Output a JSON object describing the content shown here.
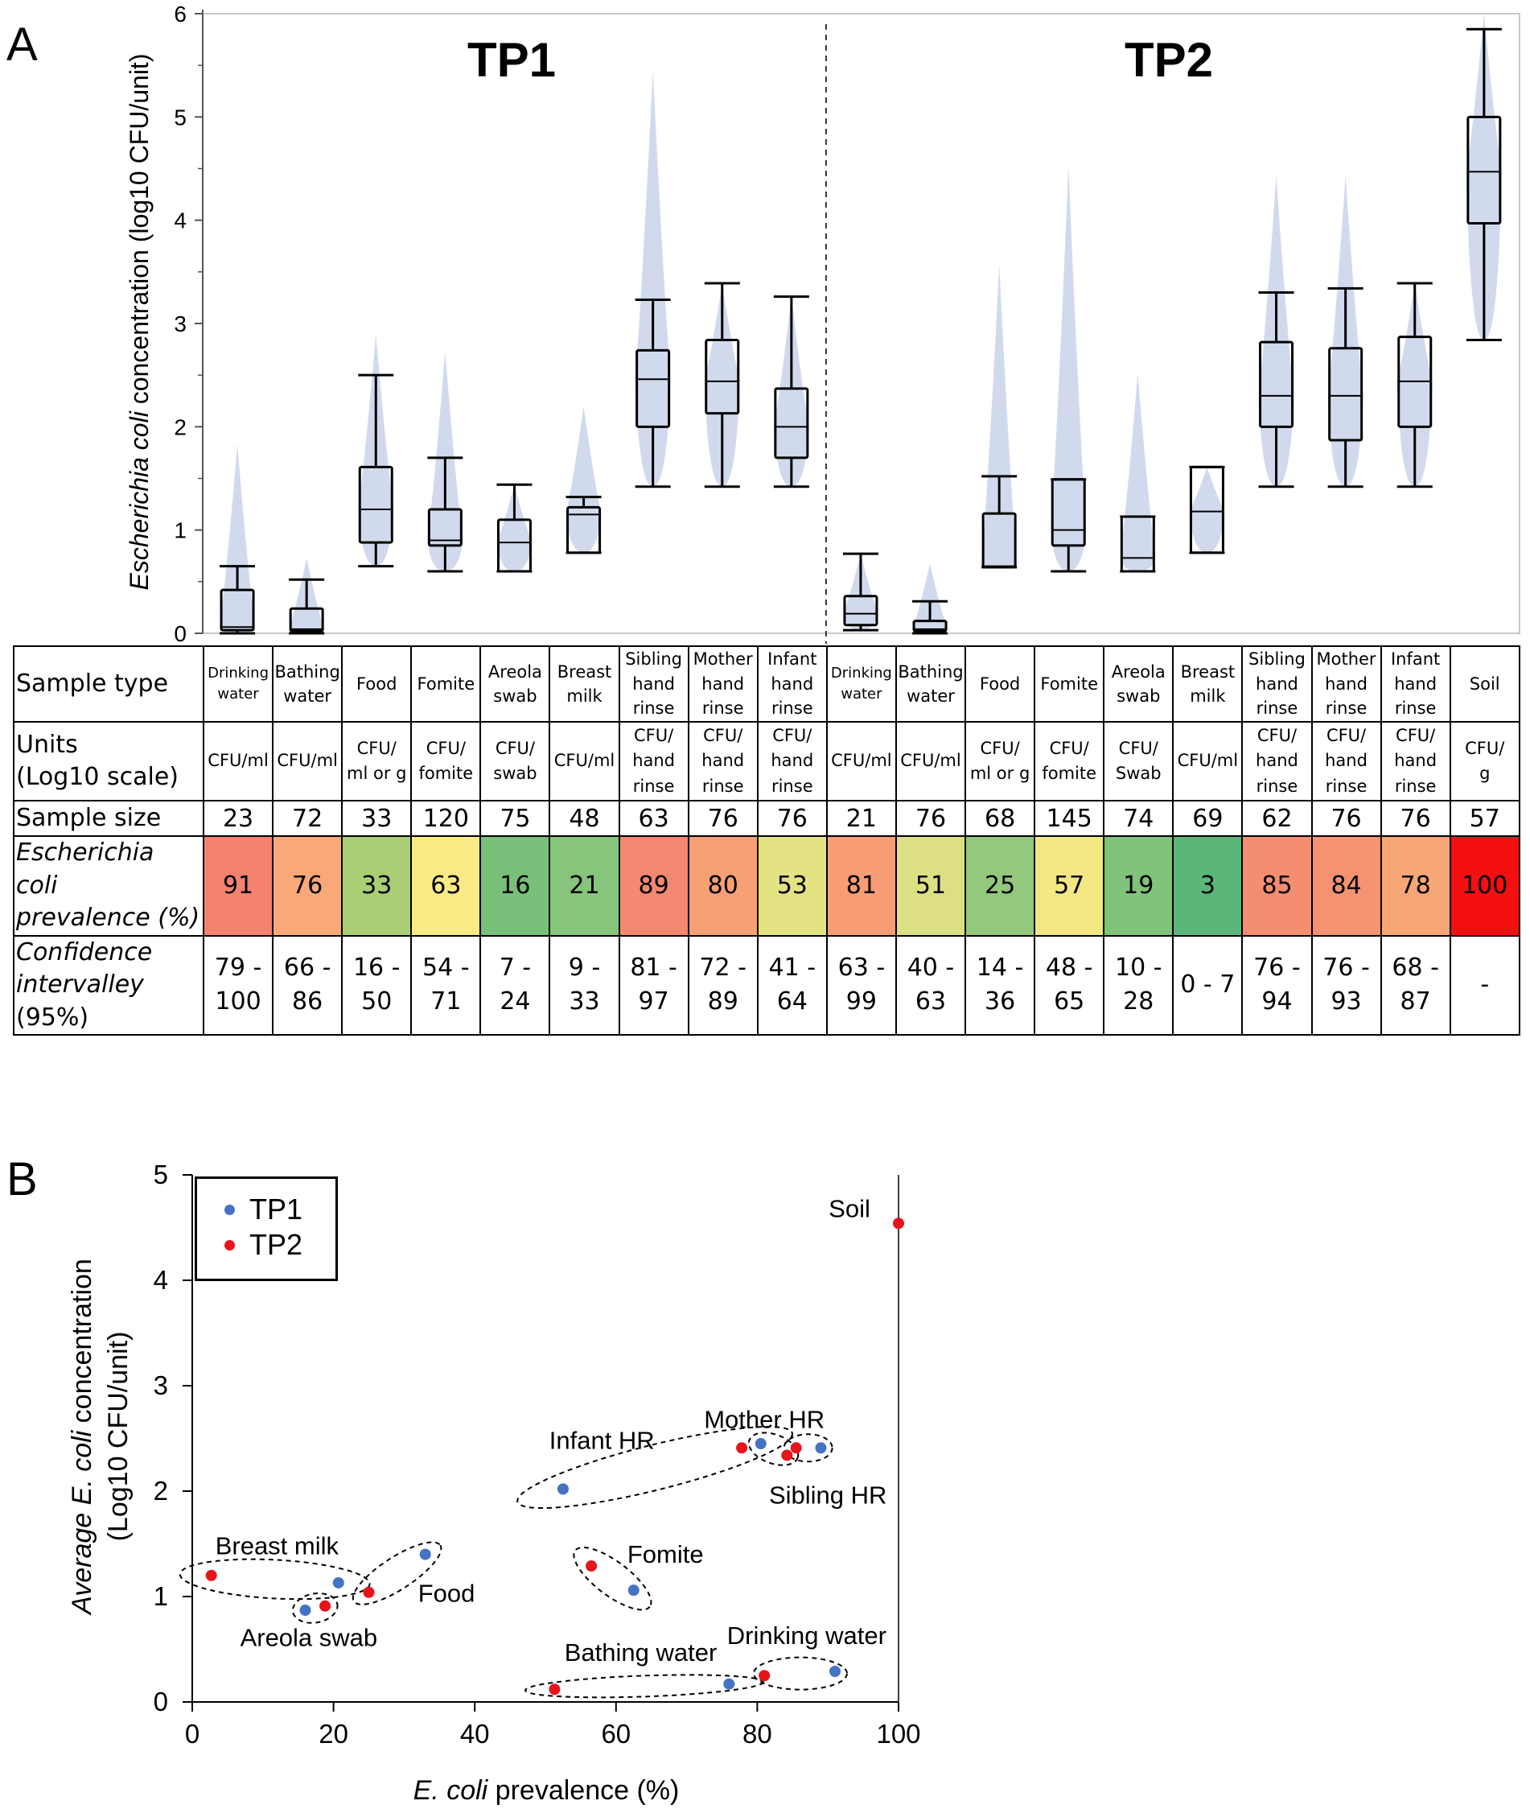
{
  "panel_a_label": "A",
  "panel_b_label": "B",
  "panel_a": {
    "group_titles": [
      "TP1",
      "TP2"
    ],
    "ylabel_italic": "Escherichia coli",
    "ylabel_rest": " concentration (log10 CFU/unit)",
    "yticks": [
      "0",
      "1",
      "2",
      "3",
      "4",
      "5",
      "6"
    ],
    "table": {
      "row_labels": {
        "sample_type": "Sample type",
        "units": "Units\n(Log10 scale)",
        "sample_size": "Sample size",
        "prevalence": "Escherichia coli\nprevalence (%)",
        "ci_italic": "Confidence\nintervalley",
        "ci_rest": " (95%)"
      },
      "columns": [
        {
          "type": "Drinking\nwater",
          "units": "CFU/ml",
          "n": "23",
          "prev": "91",
          "ci": "79 -\n100",
          "color": "#F4826E"
        },
        {
          "type": "Bathing\nwater",
          "units": "CFU/ml",
          "n": "72",
          "prev": "76",
          "ci": "66 -\n86",
          "color": "#F8A977"
        },
        {
          "type": "Food",
          "units": "CFU/\nml or g",
          "n": "33",
          "prev": "33",
          "ci": "16 -\n50",
          "color": "#A9CE73"
        },
        {
          "type": "Fomite",
          "units": "CFU/\nfomite",
          "n": "120",
          "prev": "63",
          "ci": "54 -\n71",
          "color": "#F9EA83"
        },
        {
          "type": "Areola\nswab",
          "units": "CFU/\nswab",
          "n": "75",
          "prev": "16",
          "ci": "7 - 24",
          "color": "#78C07A"
        },
        {
          "type": "Breast\nmilk",
          "units": "CFU/ml",
          "n": "48",
          "prev": "21",
          "ci": "9 - 33",
          "color": "#86C57B"
        },
        {
          "type": "Sibling\nhand\nrinse",
          "units": "CFU/\nhand\nrinse",
          "n": "63",
          "prev": "89",
          "ci": "81 -\n97",
          "color": "#F48870"
        },
        {
          "type": "Mother\nhand\nrinse",
          "units": "CFU/\nhand\nrinse",
          "n": "76",
          "prev": "80",
          "ci": "72 -\n89",
          "color": "#F7A075"
        },
        {
          "type": "Infant\nhand\nrinse",
          "units": "CFU/\nhand\nrinse",
          "n": "76",
          "prev": "53",
          "ci": "41 -\n64",
          "color": "#E4E383"
        },
        {
          "type": "Drinking\nwater",
          "units": "CFU/ml",
          "n": "21",
          "prev": "81",
          "ci": "63 -\n99",
          "color": "#F79C74"
        },
        {
          "type": "Bathing\nwater",
          "units": "CFU/ml",
          "n": "76",
          "prev": "51",
          "ci": "40 -\n63",
          "color": "#DCE082"
        },
        {
          "type": "Food",
          "units": "CFU/\nml or g",
          "n": "68",
          "prev": "25",
          "ci": "14 -\n36",
          "color": "#94C87C"
        },
        {
          "type": "Fomite",
          "units": "CFU/\nfomite",
          "n": "145",
          "prev": "57",
          "ci": "48 -\n65",
          "color": "#F2E783"
        },
        {
          "type": "Areola\nswab",
          "units": "CFU/\nSwab",
          "n": "74",
          "prev": "19",
          "ci": "10 -\n28",
          "color": "#80C37B"
        },
        {
          "type": "Breast\nmilk",
          "units": "CFU/ml",
          "n": "69",
          "prev": "3",
          "ci": "0 - 7",
          "color": "#5BB67A"
        },
        {
          "type": "Sibling\nhand\nrinse",
          "units": "CFU/\nhand\nrinse",
          "n": "62",
          "prev": "85",
          "ci": "76 -\n94",
          "color": "#F58E71"
        },
        {
          "type": "Mother\nhand\nrinse",
          "units": "CFU/\nhand\nrinse",
          "n": "76",
          "prev": "84",
          "ci": "76 -\n93",
          "color": "#F59272"
        },
        {
          "type": "Infant\nhand\nrinse",
          "units": "CFU/\nhand\nrinse",
          "n": "76",
          "prev": "78",
          "ci": "68 -\n87",
          "color": "#F7A676"
        },
        {
          "type": "Soil",
          "units": "CFU/\ng",
          "n": "57",
          "prev": "100",
          "ci": "-",
          "color": "#F40F10"
        }
      ]
    }
  },
  "chart_data": [
    {
      "type": "box",
      "title": "",
      "groups": [
        "TP1",
        "TP2"
      ],
      "ylabel": "Escherichia coli concentration (log10 CFU/unit)",
      "ylim": [
        0,
        6
      ],
      "violin_color": "#C9D3EA",
      "boxes": [
        {
          "group": "TP1",
          "category": "Drinking water",
          "min": 0.0,
          "q1": 0.03,
          "median": 0.06,
          "q3": 0.42,
          "max": 0.65,
          "violin_max": 1.83
        },
        {
          "group": "TP1",
          "category": "Bathing water",
          "min": 0.0,
          "q1": 0.02,
          "median": 0.04,
          "q3": 0.24,
          "max": 0.52,
          "violin_max": 0.73
        },
        {
          "group": "TP1",
          "category": "Food",
          "min": 0.65,
          "q1": 0.88,
          "median": 1.2,
          "q3": 1.61,
          "max": 2.5,
          "violin_max": 2.9
        },
        {
          "group": "TP1",
          "category": "Fomite",
          "min": 0.6,
          "q1": 0.85,
          "median": 0.9,
          "q3": 1.2,
          "max": 1.7,
          "violin_max": 2.73
        },
        {
          "group": "TP1",
          "category": "Areola swab",
          "min": 0.6,
          "q1": 0.6,
          "median": 0.88,
          "q3": 1.1,
          "max": 1.44,
          "violin_max": 1.44
        },
        {
          "group": "TP1",
          "category": "Breast milk",
          "min": 0.78,
          "q1": 0.78,
          "median": 1.15,
          "q3": 1.22,
          "max": 1.32,
          "violin_max": 2.2
        },
        {
          "group": "TP1",
          "category": "Sibling hand rinse",
          "min": 1.42,
          "q1": 2.0,
          "median": 2.46,
          "q3": 2.74,
          "max": 3.23,
          "violin_max": 5.45
        },
        {
          "group": "TP1",
          "category": "Mother hand rinse",
          "min": 1.42,
          "q1": 2.13,
          "median": 2.44,
          "q3": 2.84,
          "max": 3.39,
          "violin_max": 3.39
        },
        {
          "group": "TP1",
          "category": "Infant hand rinse",
          "min": 1.42,
          "q1": 1.7,
          "median": 2.0,
          "q3": 2.37,
          "max": 3.26,
          "violin_max": 3.26
        },
        {
          "group": "TP2",
          "category": "Drinking water",
          "min": 0.03,
          "q1": 0.08,
          "median": 0.19,
          "q3": 0.36,
          "max": 0.77,
          "violin_max": 0.77
        },
        {
          "group": "TP2",
          "category": "Bathing water",
          "min": 0.0,
          "q1": 0.02,
          "median": 0.04,
          "q3": 0.12,
          "max": 0.31,
          "violin_max": 0.67
        },
        {
          "group": "TP2",
          "category": "Food",
          "min": 0.64,
          "q1": 0.64,
          "median": 0.65,
          "q3": 1.16,
          "max": 1.52,
          "violin_max": 3.57
        },
        {
          "group": "TP2",
          "category": "Fomite",
          "min": 0.6,
          "q1": 0.85,
          "median": 1.0,
          "q3": 1.49,
          "max": 1.49,
          "violin_max": 4.53
        },
        {
          "group": "TP2",
          "category": "Areola swab",
          "min": 0.6,
          "q1": 0.6,
          "median": 0.73,
          "q3": 1.13,
          "max": 1.13,
          "violin_max": 2.52
        },
        {
          "group": "TP2",
          "category": "Breast milk",
          "min": 0.78,
          "q1": 0.78,
          "median": 1.18,
          "q3": 1.61,
          "max": 1.61,
          "violin_max": 1.61
        },
        {
          "group": "TP2",
          "category": "Sibling hand rinse",
          "min": 1.42,
          "q1": 2.0,
          "median": 2.3,
          "q3": 2.82,
          "max": 3.3,
          "violin_max": 4.43
        },
        {
          "group": "TP2",
          "category": "Mother hand rinse",
          "min": 1.42,
          "q1": 1.87,
          "median": 2.3,
          "q3": 2.76,
          "max": 3.34,
          "violin_max": 4.43
        },
        {
          "group": "TP2",
          "category": "Infant hand rinse",
          "min": 1.42,
          "q1": 2.0,
          "median": 2.44,
          "q3": 2.87,
          "max": 3.39,
          "violin_max": 3.39
        },
        {
          "group": "TP2",
          "category": "Soil",
          "min": 2.84,
          "q1": 3.97,
          "median": 4.47,
          "q3": 5.0,
          "max": 5.85,
          "violin_max": 6.0
        }
      ]
    },
    {
      "type": "scatter",
      "title": "",
      "xlabel_italic": "E. coli",
      "xlabel_rest": " prevalence (%)",
      "ylabel_line1_pre": "Average ",
      "ylabel_line1_italic": "E. coli",
      "ylabel_line1_post": " concentration",
      "ylabel_line2": "(Log10 CFU/unit)",
      "xlim": [
        0,
        100
      ],
      "ylim": [
        0,
        5
      ],
      "xticks": [
        "0",
        "20",
        "40",
        "60",
        "80",
        "100"
      ],
      "yticks": [
        "0",
        "1",
        "2",
        "3",
        "4",
        "5"
      ],
      "legend": [
        {
          "name": "TP1",
          "color": "#4472C4"
        },
        {
          "name": "TP2",
          "color": "#E8141B"
        }
      ],
      "series": [
        {
          "name": "TP1",
          "points": [
            {
              "x": 91,
              "y": 0.29
            },
            {
              "x": 76,
              "y": 0.17
            },
            {
              "x": 33,
              "y": 1.4
            },
            {
              "x": 62.5,
              "y": 1.06
            },
            {
              "x": 16,
              "y": 0.87
            },
            {
              "x": 20.7,
              "y": 1.13
            },
            {
              "x": 89,
              "y": 2.41
            },
            {
              "x": 80.5,
              "y": 2.45
            },
            {
              "x": 52.5,
              "y": 2.02
            }
          ]
        },
        {
          "name": "TP2",
          "points": [
            {
              "x": 81,
              "y": 0.25
            },
            {
              "x": 51.3,
              "y": 0.12
            },
            {
              "x": 25,
              "y": 1.04
            },
            {
              "x": 56.5,
              "y": 1.29
            },
            {
              "x": 18.8,
              "y": 0.91
            },
            {
              "x": 2.7,
              "y": 1.2
            },
            {
              "x": 85.5,
              "y": 2.41
            },
            {
              "x": 84.2,
              "y": 2.34
            },
            {
              "x": 77.8,
              "y": 2.41
            },
            {
              "x": 100,
              "y": 4.54
            }
          ]
        }
      ],
      "annotations": [
        "Soil",
        "Infant HR",
        "Mother HR",
        "Sibling HR",
        "Breast milk",
        "Food",
        "Fomite",
        "Areola swab",
        "Bathing water",
        "Drinking water"
      ]
    }
  ]
}
